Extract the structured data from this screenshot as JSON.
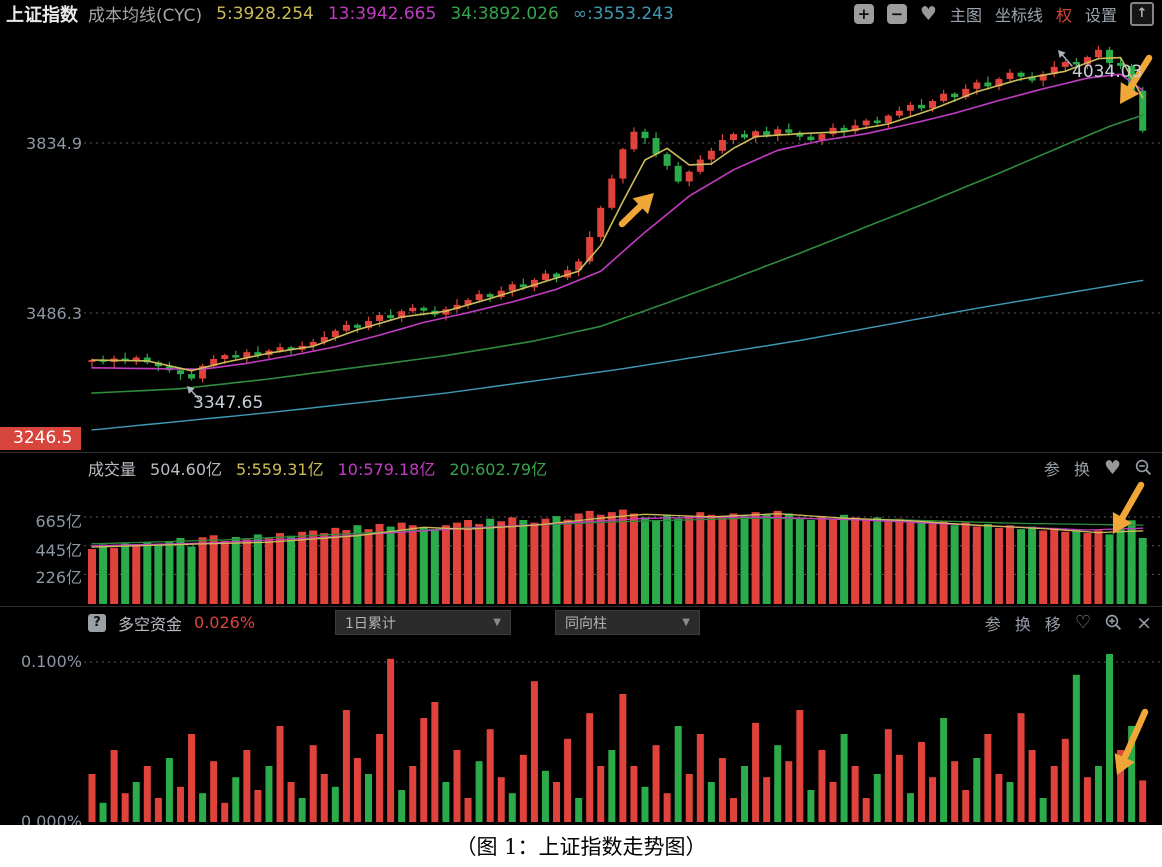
{
  "header": {
    "title": "上证指数",
    "subtitle": "成本均线(CYC)",
    "ma_values": [
      {
        "label": "5:3928.254"
      },
      {
        "label": "13:3942.665"
      },
      {
        "label": "34:3892.026"
      },
      {
        "label": "∞:3553.243"
      }
    ],
    "tools": {
      "plus": "+",
      "minus": "−",
      "heart": "♥",
      "main_chart": "主图",
      "axis_line": "坐标线",
      "quan": "权",
      "settings": "设置",
      "export_arrow": "↑"
    }
  },
  "main_chart": {
    "y_labels": [
      {
        "text": "3834.9",
        "value": 3834.9
      },
      {
        "text": "3486.3",
        "value": 3486.3
      }
    ],
    "badge": {
      "text": "3246.5",
      "value": 3246.5
    },
    "annotations": {
      "low": "3347.65",
      "high": "4034.03"
    },
    "first_open": 3386,
    "closes": [
      3390,
      3386,
      3393,
      3388,
      3395,
      3385,
      3377,
      3369,
      3361,
      3352,
      3378,
      3392,
      3400,
      3395,
      3406,
      3400,
      3409,
      3416,
      3411,
      3419,
      3427,
      3437,
      3450,
      3462,
      3456,
      3470,
      3482,
      3476,
      3490,
      3497,
      3491,
      3483,
      3494,
      3503,
      3513,
      3525,
      3519,
      3532,
      3545,
      3539,
      3554,
      3567,
      3559,
      3574,
      3592,
      3642,
      3702,
      3762,
      3822,
      3858,
      3845,
      3812,
      3788,
      3756,
      3776,
      3801,
      3819,
      3841,
      3853,
      3846,
      3859,
      3851,
      3863,
      3856,
      3848,
      3841,
      3853,
      3866,
      3859,
      3871,
      3881,
      3876,
      3891,
      3901,
      3913,
      3906,
      3921,
      3936,
      3929,
      3946,
      3959,
      3951,
      3966,
      3979,
      3971,
      3963,
      3976,
      3991,
      4001,
      3996,
      4011,
      4026,
      3999,
      3993,
      3942,
      3860
    ],
    "wick_up": [
      3,
      9,
      6,
      12,
      4,
      8
    ],
    "wick_down": [
      8,
      4,
      10,
      5,
      12,
      6
    ],
    "low_override": {
      "9": 3347.65
    },
    "high_override": {
      "91": 4034.03
    },
    "ma": {
      "ma5": [
        [
          0,
          3390
        ],
        [
          5,
          3388
        ],
        [
          9,
          3368
        ],
        [
          12,
          3385
        ],
        [
          16,
          3404
        ],
        [
          20,
          3418
        ],
        [
          24,
          3452
        ],
        [
          28,
          3478
        ],
        [
          32,
          3490
        ],
        [
          36,
          3516
        ],
        [
          40,
          3544
        ],
        [
          44,
          3572
        ],
        [
          46,
          3625
        ],
        [
          48,
          3715
        ],
        [
          50,
          3800
        ],
        [
          52,
          3824
        ],
        [
          54,
          3790
        ],
        [
          56,
          3792
        ],
        [
          58,
          3824
        ],
        [
          60,
          3848
        ],
        [
          64,
          3854
        ],
        [
          68,
          3858
        ],
        [
          72,
          3874
        ],
        [
          76,
          3904
        ],
        [
          80,
          3940
        ],
        [
          84,
          3966
        ],
        [
          88,
          3982
        ],
        [
          91,
          4008
        ],
        [
          93,
          4010
        ],
        [
          95,
          3928
        ]
      ],
      "ma13": [
        [
          0,
          3374
        ],
        [
          6,
          3372
        ],
        [
          10,
          3371
        ],
        [
          14,
          3383
        ],
        [
          18,
          3399
        ],
        [
          22,
          3417
        ],
        [
          26,
          3441
        ],
        [
          30,
          3467
        ],
        [
          34,
          3487
        ],
        [
          38,
          3509
        ],
        [
          42,
          3535
        ],
        [
          46,
          3572
        ],
        [
          50,
          3652
        ],
        [
          54,
          3726
        ],
        [
          58,
          3780
        ],
        [
          62,
          3820
        ],
        [
          66,
          3840
        ],
        [
          70,
          3854
        ],
        [
          74,
          3874
        ],
        [
          78,
          3896
        ],
        [
          82,
          3922
        ],
        [
          86,
          3946
        ],
        [
          90,
          3968
        ],
        [
          93,
          3976
        ],
        [
          95,
          3943
        ]
      ],
      "ma34": [
        [
          0,
          3322
        ],
        [
          8,
          3331
        ],
        [
          16,
          3351
        ],
        [
          24,
          3375
        ],
        [
          32,
          3399
        ],
        [
          40,
          3429
        ],
        [
          46,
          3459
        ],
        [
          52,
          3507
        ],
        [
          58,
          3557
        ],
        [
          64,
          3609
        ],
        [
          70,
          3663
        ],
        [
          76,
          3717
        ],
        [
          82,
          3773
        ],
        [
          88,
          3831
        ],
        [
          92,
          3869
        ],
        [
          95,
          3892
        ]
      ],
      "inf": [
        [
          0,
          3246.5
        ],
        [
          16,
          3282
        ],
        [
          32,
          3322
        ],
        [
          48,
          3372
        ],
        [
          64,
          3430
        ],
        [
          80,
          3496
        ],
        [
          95,
          3553.2
        ]
      ]
    }
  },
  "volume": {
    "label": "成交量",
    "current": "504.60亿",
    "ma_values": [
      {
        "label": "5:559.31亿"
      },
      {
        "label": "10:579.18亿"
      },
      {
        "label": "20:602.79亿"
      }
    ],
    "y_labels": [
      {
        "text": "665亿",
        "value": 665
      },
      {
        "text": "445亿",
        "value": 445
      },
      {
        "text": "226亿",
        "value": 226
      }
    ],
    "bars": [
      420,
      455,
      430,
      462,
      445,
      472,
      452,
      480,
      505,
      440,
      510,
      525,
      482,
      512,
      492,
      532,
      502,
      542,
      522,
      552,
      562,
      542,
      582,
      565,
      602,
      572,
      612,
      592,
      622,
      602,
      582,
      562,
      602,
      622,
      642,
      612,
      652,
      632,
      662,
      642,
      622,
      652,
      672,
      645,
      692,
      712,
      682,
      702,
      722,
      692,
      662,
      642,
      682,
      652,
      672,
      702,
      682,
      662,
      692,
      672,
      702,
      682,
      712,
      692,
      662,
      642,
      672,
      652,
      682,
      662,
      642,
      662,
      632,
      652,
      622,
      642,
      612,
      632,
      602,
      622,
      592,
      612,
      582,
      602,
      572,
      592,
      562,
      582,
      552,
      572,
      542,
      562,
      532,
      578,
      640,
      504.6
    ],
    "ma": {
      "v5": [
        [
          0,
          435
        ],
        [
          8,
          455
        ],
        [
          16,
          472
        ],
        [
          24,
          522
        ],
        [
          30,
          586
        ],
        [
          34,
          572
        ],
        [
          40,
          602
        ],
        [
          46,
          656
        ],
        [
          50,
          686
        ],
        [
          56,
          666
        ],
        [
          62,
          690
        ],
        [
          68,
          656
        ],
        [
          74,
          636
        ],
        [
          80,
          602
        ],
        [
          86,
          576
        ],
        [
          91,
          546
        ],
        [
          95,
          559.3
        ]
      ],
      "v10": [
        [
          0,
          445
        ],
        [
          10,
          465
        ],
        [
          20,
          505
        ],
        [
          30,
          560
        ],
        [
          40,
          605
        ],
        [
          50,
          655
        ],
        [
          60,
          666
        ],
        [
          70,
          641
        ],
        [
          80,
          601
        ],
        [
          90,
          566
        ],
        [
          95,
          579.2
        ]
      ],
      "v20": [
        [
          0,
          460
        ],
        [
          12,
          490
        ],
        [
          24,
          540
        ],
        [
          36,
          590
        ],
        [
          48,
          630
        ],
        [
          60,
          656
        ],
        [
          72,
          646
        ],
        [
          84,
          616
        ],
        [
          95,
          602.8
        ]
      ]
    },
    "tools": {
      "can": "参",
      "huan": "换",
      "heart": "♥"
    }
  },
  "indicator": {
    "help": "?",
    "name": "多空资金",
    "value": "0.026%",
    "dropdown1": "1日累计",
    "dropdown2": "同向柱",
    "dd_caret": "▼",
    "y_top": {
      "text": "0.100%",
      "value": 0.1
    },
    "y_bottom": {
      "text": "0.000%",
      "value": 0.0
    },
    "bars": [
      30,
      -12,
      45,
      18,
      -25,
      35,
      15,
      -40,
      22,
      55,
      -18,
      38,
      12,
      -28,
      45,
      20,
      -35,
      60,
      25,
      -15,
      48,
      30,
      -22,
      70,
      40,
      -30,
      55,
      102,
      -20,
      35,
      65,
      75,
      -25,
      45,
      15,
      -38,
      58,
      28,
      -18,
      42,
      88,
      -32,
      25,
      52,
      -15,
      68,
      35,
      -45,
      80,
      35,
      -22,
      48,
      18,
      -60,
      30,
      55,
      -25,
      40,
      15,
      -35,
      62,
      28,
      -48,
      38,
      70,
      -20,
      45,
      25,
      -55,
      35,
      15,
      -30,
      58,
      42,
      -18,
      50,
      28,
      -65,
      38,
      20,
      -40,
      55,
      30,
      -25,
      68,
      45,
      -15,
      35,
      52,
      -92,
      28,
      -35,
      -105,
      45,
      -60,
      26
    ],
    "tools": {
      "can": "参",
      "huan": "换",
      "yi": "移",
      "heart": "♡",
      "close": "×"
    }
  },
  "caption": "（图 1：上证指数走势图）",
  "theme": {
    "up": "#e0433c",
    "down": "#2cab4b",
    "ma5": "#cdbd59",
    "ma13": "#c23cc2",
    "ma34": "#35a44e",
    "ma34_line": "#2e8b3d",
    "inf": "#3f9ab5",
    "grid": "#5c5c5c",
    "axis_label": "#8d97a5",
    "red_text": "#d8453c",
    "arrow": "#f0a737"
  }
}
